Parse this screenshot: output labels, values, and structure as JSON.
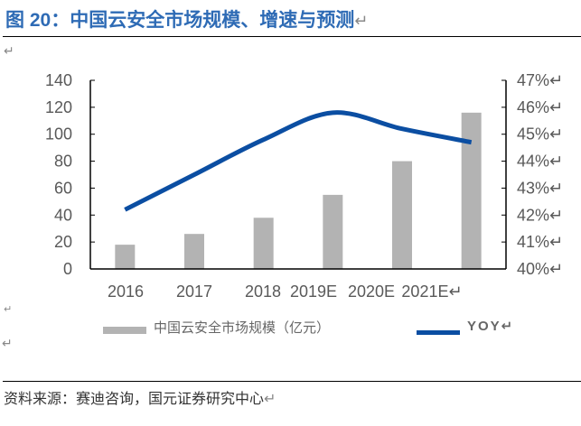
{
  "title": "图 20：中国云安全市场规模、增速与预测",
  "source": "资料来源：赛迪咨询，国元证券研究中心",
  "chart_data": {
    "type": "bar+line",
    "title": "",
    "categories": [
      "2016",
      "2017",
      "2018",
      "2019E",
      "2020E",
      "2021E"
    ],
    "series": [
      {
        "name": "中国云安全市场规模（亿元）",
        "type": "bar",
        "axis": "left",
        "color": "#b3b3b3",
        "values": [
          18,
          26,
          38,
          55,
          80,
          116
        ]
      },
      {
        "name": "YOY",
        "type": "line",
        "axis": "right",
        "color": "#0b4ea2",
        "smooth": true,
        "values": [
          42.2,
          43.5,
          44.8,
          45.8,
          45.2,
          44.7
        ]
      }
    ],
    "left_axis": {
      "min": 0,
      "max": 140,
      "ticks": [
        "0",
        "20",
        "40",
        "60",
        "80",
        "100",
        "120",
        "140"
      ]
    },
    "right_axis": {
      "min": 40,
      "max": 47,
      "unit": "%",
      "ticks": [
        "40%",
        "41%",
        "42%",
        "43%",
        "44%",
        "45%",
        "46%",
        "47%"
      ]
    },
    "grid": false,
    "legend": "bottom"
  }
}
